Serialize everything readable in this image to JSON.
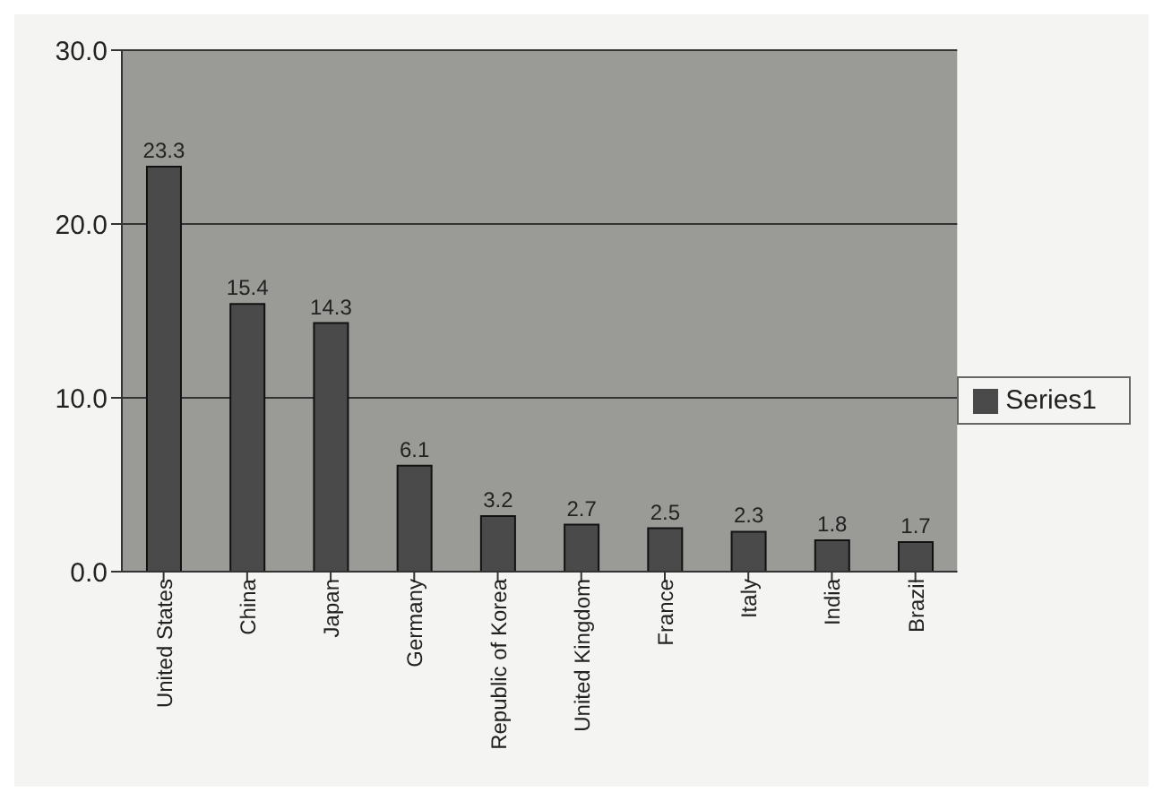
{
  "chart_data": {
    "type": "bar",
    "categories": [
      "United States",
      "China",
      "Japan",
      "Germany",
      "Republic of Korea",
      "United Kingdom",
      "France",
      "Italy",
      "India",
      "Brazil"
    ],
    "series": [
      {
        "name": "Series1",
        "color": "#4a4a4a",
        "values": [
          23.3,
          15.4,
          14.3,
          6.1,
          3.2,
          2.7,
          2.5,
          2.3,
          1.8,
          1.7
        ]
      }
    ],
    "ylim": [
      0,
      30
    ],
    "yticks": [
      {
        "value": 0,
        "label": "0.0"
      },
      {
        "value": 10,
        "label": "10.0"
      },
      {
        "value": 20,
        "label": "20.0"
      },
      {
        "value": 30,
        "label": "30.0"
      }
    ],
    "grid": "y",
    "legend": "right",
    "data_labels": true
  }
}
